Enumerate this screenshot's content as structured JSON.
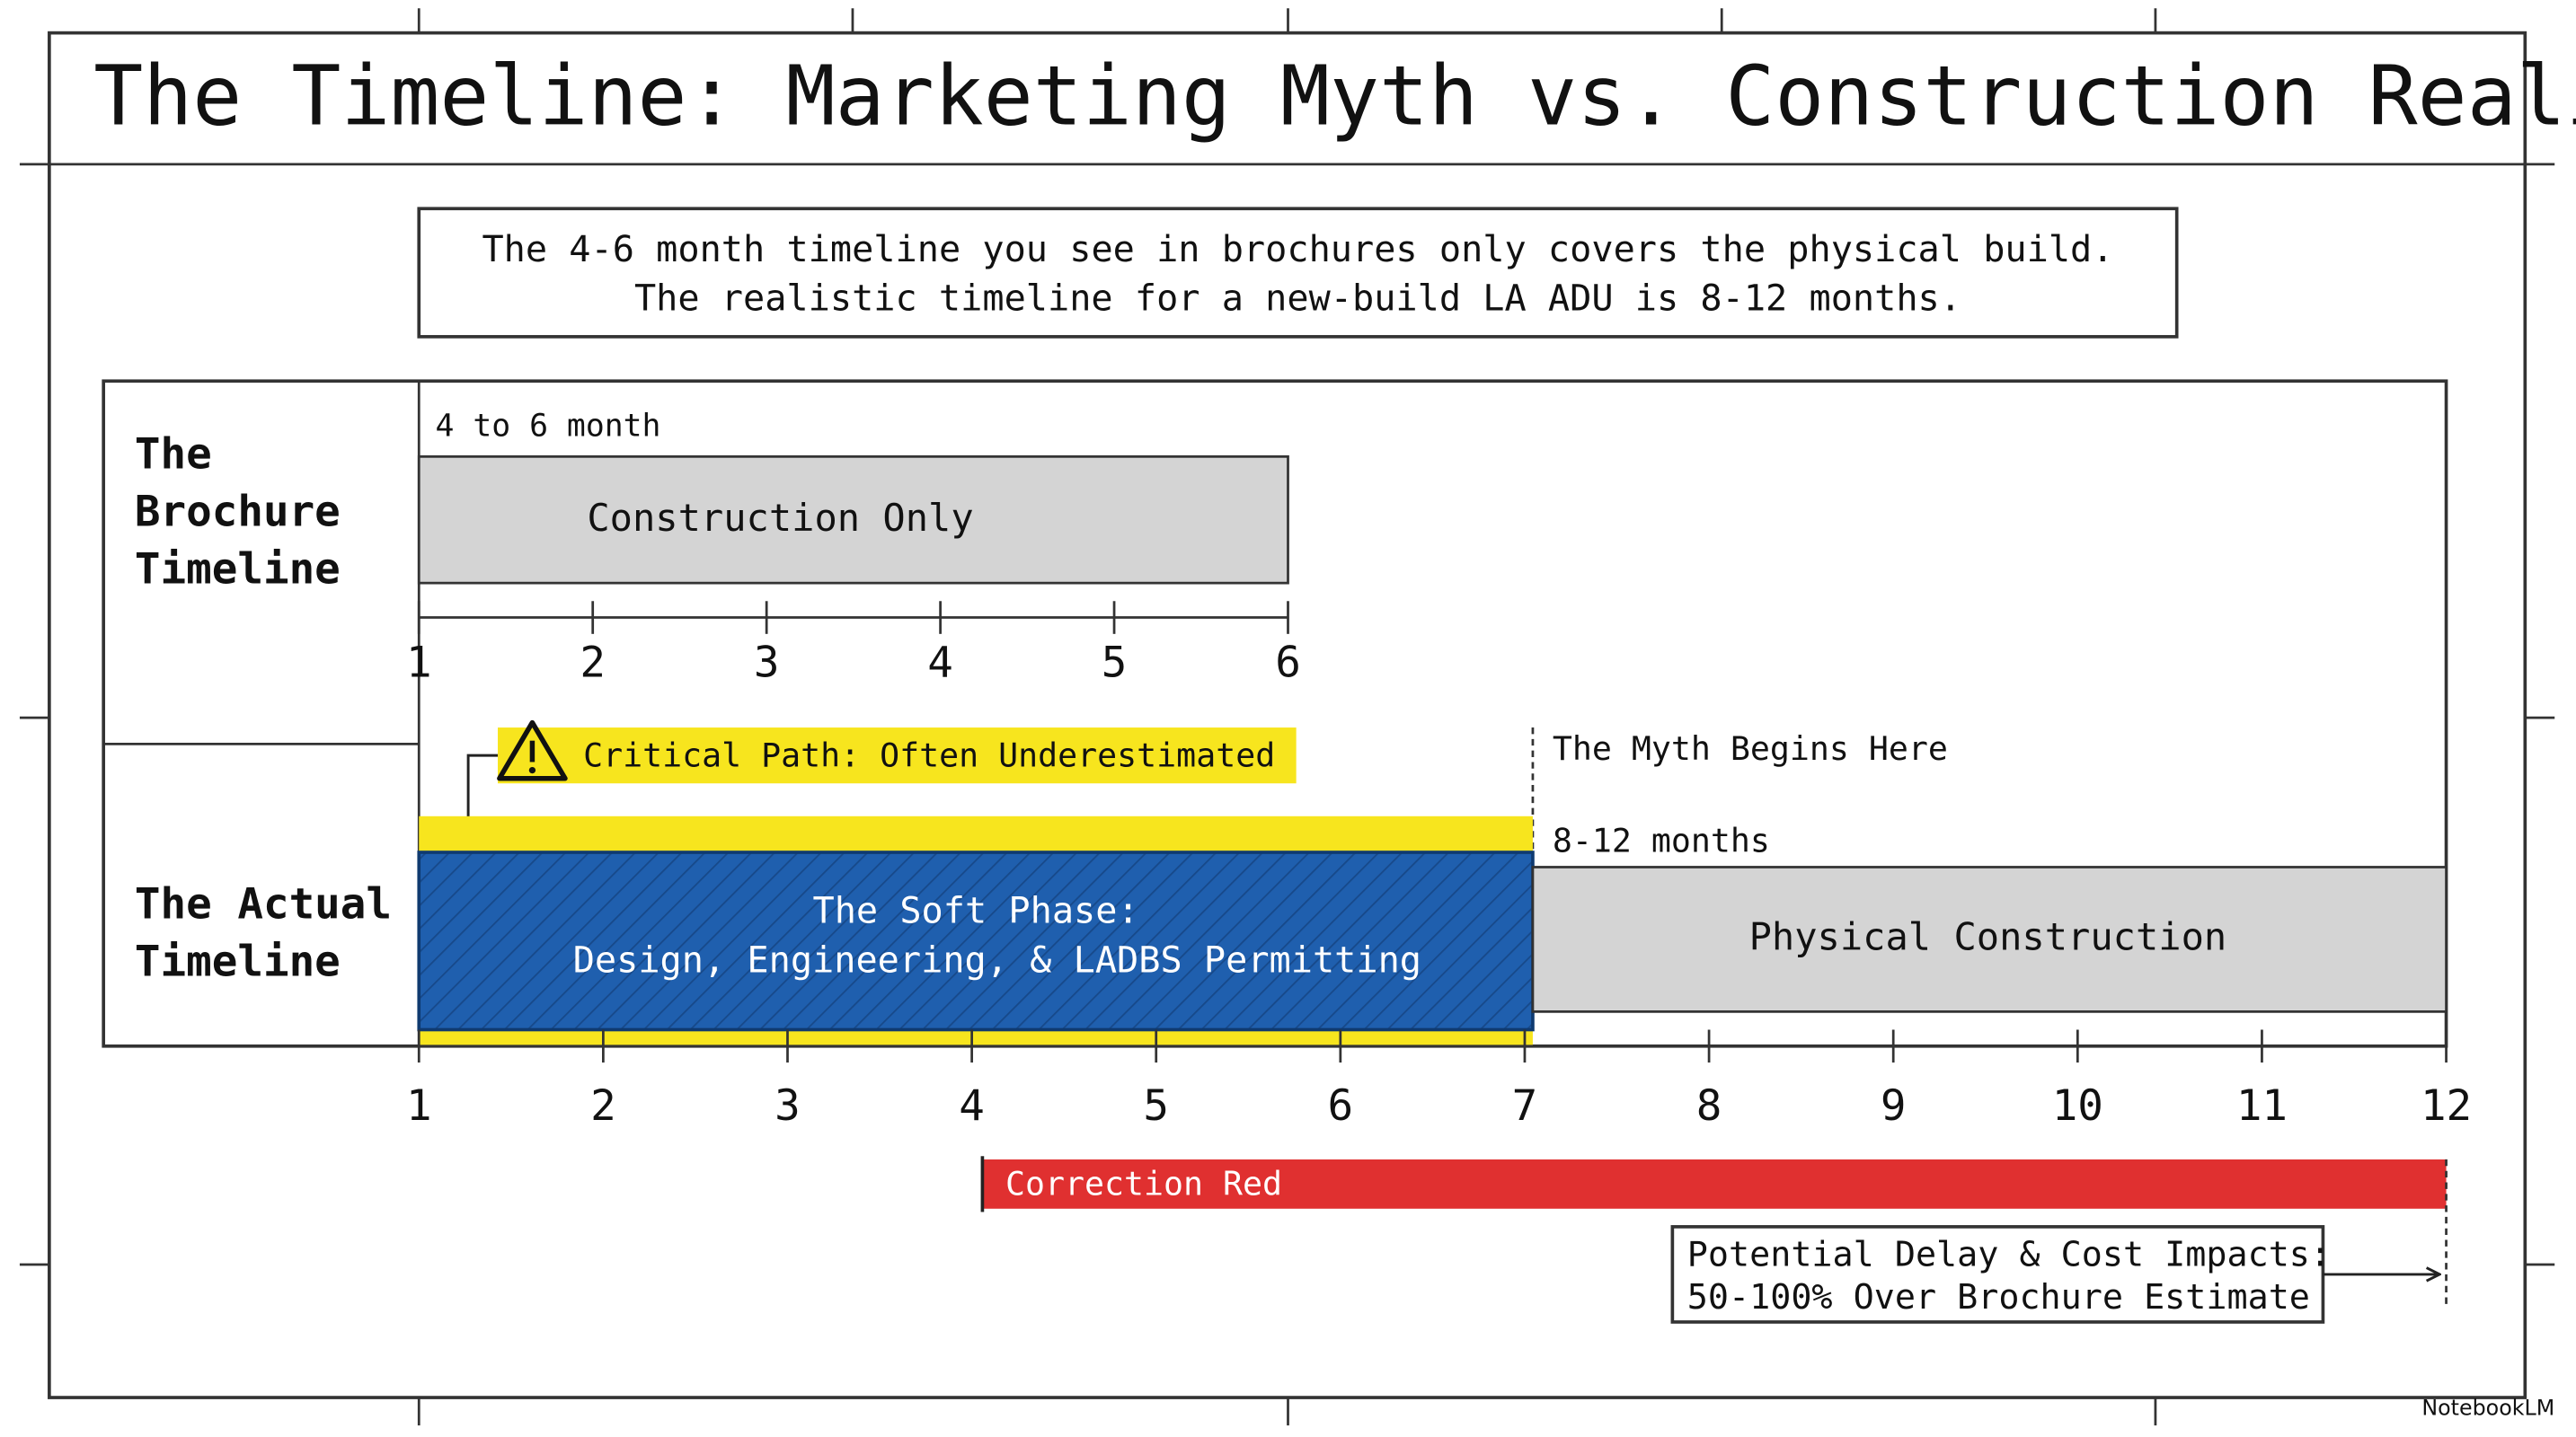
{
  "title": "The Timeline: Marketing Myth vs. Construction Reality",
  "summary": [
    "The 4-6 month timeline you see in brochures only covers the physical build.",
    "The realistic timeline for a new-build LA ADU is 8-12 months."
  ],
  "brochure": {
    "label": [
      "The",
      "Brochure",
      "Timeline"
    ],
    "range_label": "4 to 6 month",
    "bar_label": "Construction Only",
    "axis_ticks": [
      1,
      2,
      3,
      4,
      5,
      6
    ]
  },
  "actual": {
    "label": [
      "The Actual",
      "Timeline"
    ],
    "callout": "Critical Path: Often Underestimated",
    "myth_note": "The Myth Begins Here",
    "range_label": "8-12 months",
    "soft_phase": [
      "The Soft Phase:",
      "Design, Engineering, & LADBS Permitting"
    ],
    "construction_label": "Physical Construction",
    "axis_ticks": [
      1,
      2,
      3,
      4,
      5,
      6,
      7,
      8,
      9,
      10,
      11,
      12
    ],
    "correction_label": "Correction Red",
    "impact_note": [
      "Potential Delay & Cost Impacts:",
      "50-100% Over Brochure Estimate"
    ]
  },
  "watermark": "NotebookLM"
}
